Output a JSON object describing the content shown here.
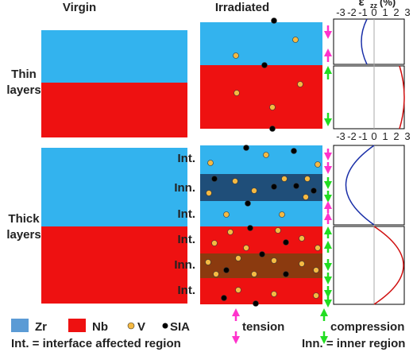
{
  "columns": [
    "Virgin",
    "Irradiated"
  ],
  "rows": [
    {
      "label": [
        "Thin",
        "layers"
      ]
    },
    {
      "label": [
        "Thick",
        "layers"
      ]
    }
  ],
  "axis": {
    "symbol": "ε",
    "subscript": "zz",
    "unit": "(%)",
    "ticks": [
      "-3",
      "-2",
      "-1",
      "0",
      "1",
      "2",
      "3"
    ]
  },
  "region_labels": [
    "Int.",
    "Inn.",
    "Int.",
    "Int.",
    "Inn.",
    "Int."
  ],
  "legend": [
    "Zr",
    "Nb",
    "V",
    "SIA",
    "tension",
    "compression"
  ],
  "notes": [
    "Int. = interface affected region",
    "Inn. = inner region"
  ]
}
